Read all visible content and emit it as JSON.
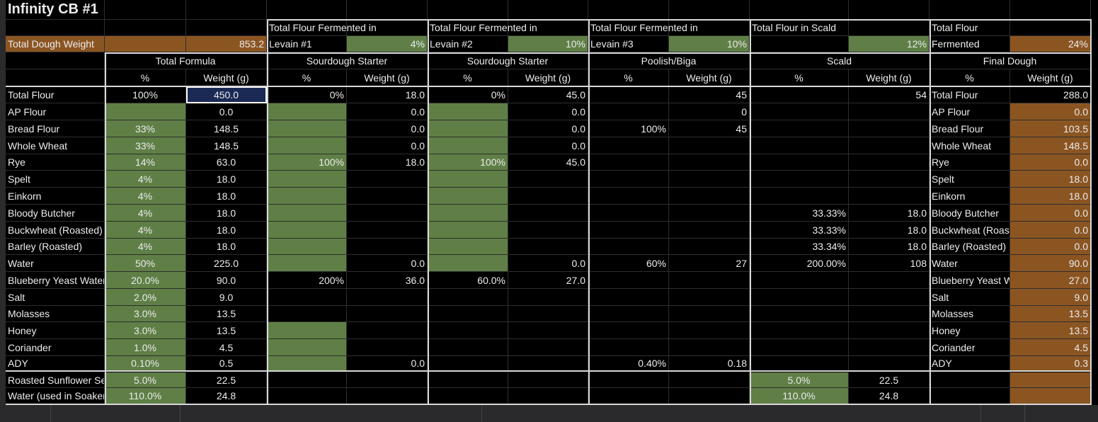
{
  "title": "Infinity CB #1",
  "header_row_2": [
    "",
    "",
    "",
    "Total Flour Fermented in",
    "",
    "Total Flour Fermented in",
    "",
    "Total Flour Fermented in",
    "",
    "Total Flour in Scald",
    "",
    "Total Flour",
    ""
  ],
  "header_row_3": [
    "Total Dough Weight",
    "",
    "853.2",
    "Levain #1",
    "4%",
    "Levain #2",
    "10%",
    "Levain #3",
    "10%",
    "",
    "12%",
    "Fermented",
    "24%"
  ],
  "groups": [
    "Total Formula",
    "Sourdough Starter",
    "Sourdough Starter",
    "Poolish/Biga",
    "Scald",
    "Final Dough"
  ],
  "subheaders": [
    "",
    "%",
    "Weight (g)",
    "%",
    "Weight (g)",
    "%",
    "Weight (g)",
    "%",
    "Weight (g)",
    "%",
    "Weight (g)",
    "%",
    "Weight (g)"
  ],
  "rows": [
    [
      "Total Flour",
      "100%",
      "450.0",
      "0%",
      "18.0",
      "0%",
      "45.0",
      "",
      "45",
      "",
      "54",
      "Total Flour",
      "288.0"
    ],
    [
      "AP Flour",
      "",
      "0.0",
      "",
      "0.0",
      "",
      "0.0",
      "",
      "0",
      "",
      "",
      "AP Flour",
      "0.0"
    ],
    [
      "Bread Flour",
      "33%",
      "148.5",
      "",
      "0.0",
      "",
      "0.0",
      "100%",
      "45",
      "",
      "",
      "Bread Flour",
      "103.5"
    ],
    [
      "Whole Wheat",
      "33%",
      "148.5",
      "",
      "0.0",
      "",
      "0.0",
      "",
      "",
      "",
      "",
      "Whole Wheat",
      "148.5"
    ],
    [
      "Rye",
      "14%",
      "63.0",
      "100%",
      "18.0",
      "100%",
      "45.0",
      "",
      "",
      "",
      "",
      "Rye",
      "0.0"
    ],
    [
      "Spelt",
      "4%",
      "18.0",
      "",
      "",
      "",
      "",
      "",
      "",
      "",
      "",
      "Spelt",
      "18.0"
    ],
    [
      "Einkorn",
      "4%",
      "18.0",
      "",
      "",
      "",
      "",
      "",
      "",
      "",
      "",
      "Einkorn",
      "18.0"
    ],
    [
      "Bloody Butcher",
      "4%",
      "18.0",
      "",
      "",
      "",
      "",
      "",
      "",
      "33.33%",
      "18.0",
      "Bloody Butcher",
      "0.0"
    ],
    [
      "Buckwheat (Roasted)",
      "4%",
      "18.0",
      "",
      "",
      "",
      "",
      "",
      "",
      "33.33%",
      "18.0",
      "Buckwheat (Roasted)",
      "0.0"
    ],
    [
      "Barley (Roasted)",
      "4%",
      "18.0",
      "",
      "",
      "",
      "",
      "",
      "",
      "33.34%",
      "18.0",
      "Barley (Roasted)",
      "0.0"
    ],
    [
      "Water",
      "50%",
      "225.0",
      "",
      "0.0",
      "",
      "0.0",
      "60%",
      "27",
      "200.00%",
      "108",
      "Water",
      "90.0"
    ],
    [
      "Blueberry Yeast Water",
      "20.0%",
      "90.0",
      "200%",
      "36.0",
      "60.0%",
      "27.0",
      "",
      "",
      "",
      "",
      "Blueberry Yeast Water",
      "27.0"
    ],
    [
      "Salt",
      "2.0%",
      "9.0",
      "",
      "",
      "",
      "",
      "",
      "",
      "",
      "",
      "Salt",
      "9.0"
    ],
    [
      "Molasses",
      "3.0%",
      "13.5",
      "",
      "",
      "",
      "",
      "",
      "",
      "",
      "",
      "Molasses",
      "13.5"
    ],
    [
      "Honey",
      "3.0%",
      "13.5",
      "",
      "",
      "",
      "",
      "",
      "",
      "",
      "",
      "Honey",
      "13.5"
    ],
    [
      "Coriander",
      "1.0%",
      "4.5",
      "",
      "",
      "",
      "",
      "",
      "",
      "",
      "",
      "Coriander",
      "4.5"
    ],
    [
      "ADY",
      "0.10%",
      "0.5",
      "",
      "0.0",
      "",
      "",
      "0.40%",
      "0.18",
      "",
      "",
      "ADY",
      "0.3"
    ],
    [
      "Roasted Sunflower Seeds",
      "5.0%",
      "22.5",
      "",
      "",
      "",
      "",
      "",
      "",
      "5.0%",
      "22.5",
      "",
      ""
    ],
    [
      "Water (used in Soaker)",
      "110.0%",
      "24.8",
      "",
      "",
      "",
      "",
      "",
      "",
      "110.0%",
      "24.8",
      "",
      ""
    ]
  ],
  "colors": {
    "green": "#5f7f46",
    "orange": "#8b5522",
    "selected": "#1b2a55"
  }
}
